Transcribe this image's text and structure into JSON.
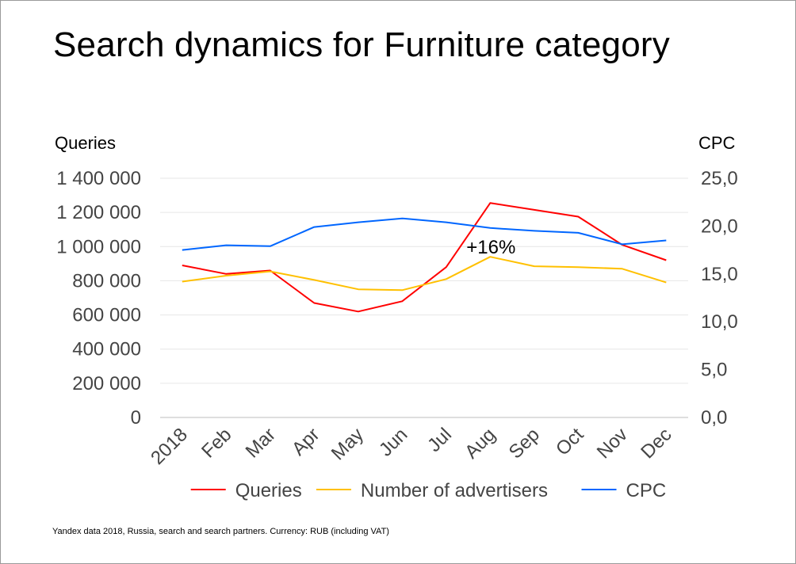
{
  "title": "Search dynamics for Furniture category",
  "footnote": "Yandex data 2018, Russia, search and search partners. Currency: RUB (including VAT)",
  "chart_data": {
    "type": "line",
    "title": "Search dynamics for Furniture category",
    "categories": [
      "2018",
      "Feb",
      "Mar",
      "Apr",
      "May",
      "Jun",
      "Jul",
      "Aug",
      "Sep",
      "Oct",
      "Nov",
      "Dec"
    ],
    "ylabel": "Queries",
    "ylabel_right": "CPC",
    "ylim": [
      0,
      1400000
    ],
    "ylim_right": [
      0,
      25
    ],
    "yticks": [
      "0",
      "200 000",
      "400 000",
      "600 000",
      "800 000",
      "1 000 000",
      "1 200 000",
      "1 400 000"
    ],
    "yticks_right": [
      "0,0",
      "5,0",
      "10,0",
      "15,0",
      "20,0",
      "25,0"
    ],
    "grid": true,
    "legend_position": "bottom",
    "series": [
      {
        "name": "Queries",
        "axis": "left",
        "color": "#ff0000",
        "values": [
          890000,
          840000,
          860000,
          670000,
          620000,
          680000,
          880000,
          1255000,
          1215000,
          1175000,
          1010000,
          920000
        ]
      },
      {
        "name": "Number of advertisers",
        "axis": "left",
        "color": "#ffc000",
        "values": [
          795000,
          830000,
          855000,
          805000,
          750000,
          745000,
          810000,
          940000,
          885000,
          880000,
          870000,
          790000
        ]
      },
      {
        "name": "CPC",
        "axis": "right",
        "color": "#0066ff",
        "values": [
          17.5,
          18.0,
          17.9,
          19.9,
          20.4,
          20.8,
          20.4,
          19.8,
          19.5,
          19.3,
          18.1,
          18.5
        ]
      }
    ],
    "annotations": [
      {
        "text": "+16%",
        "category": "Aug"
      }
    ]
  }
}
